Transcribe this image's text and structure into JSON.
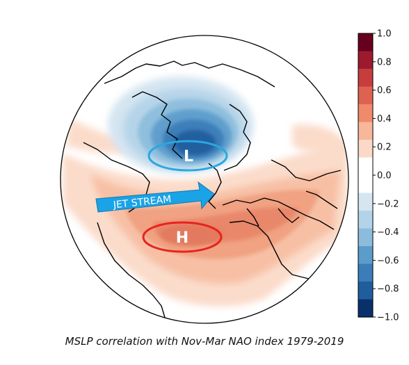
{
  "caption": "MSLP correlation with Nov-Mar NAO index 1979-2019",
  "annotations": {
    "low_label": "L",
    "high_label": "H",
    "jet_label": "JET STREAM"
  },
  "colors": {
    "low_ellipse": "#29a8e0",
    "high_ellipse": "#e8231f",
    "jet_arrow": "#1aa3e6"
  },
  "colorbar": {
    "ticks": [
      "1.0",
      "0.8",
      "0.6",
      "0.4",
      "0.2",
      "0.0",
      "−0.2",
      "−0.4",
      "−0.6",
      "−0.8",
      "−1.0"
    ],
    "colors": [
      "#67001f",
      "#9c1a2e",
      "#c53d3d",
      "#dd6350",
      "#ef8a6a",
      "#f7b79a",
      "#fbd9c8",
      "#ffffff",
      "#ffffff",
      "#d5e6f1",
      "#b3d3e8",
      "#8cbcdc",
      "#5c9ccb",
      "#3a7db8",
      "#1f5d9c",
      "#08306b"
    ]
  }
}
